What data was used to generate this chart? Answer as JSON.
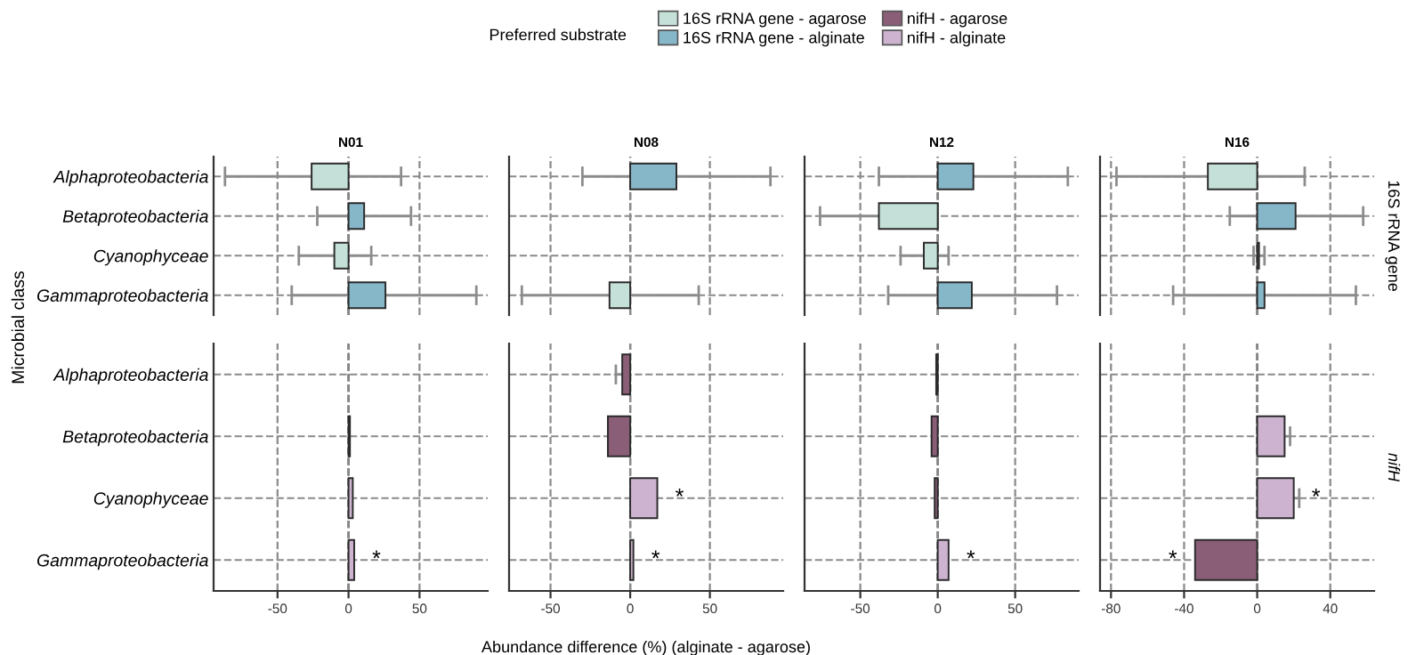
{
  "chart_data": [
    {
      "type": "bar",
      "orientation": "horizontal",
      "title": "N01",
      "ylabel": "Microbial class",
      "legend": "top",
      "legend_title": "Preferred substrate",
      "tick_labels": "y",
      "grid": true,
      "xlim": [
        -95,
        98
      ],
      "xticks": [
        -50,
        0,
        50
      ],
      "ref_lines": [
        {
          "axis": "x",
          "value": 0,
          "color": "#333333",
          "line_style": "dashed"
        }
      ],
      "categories": [
        "Alphaproteobacteria",
        "Betaproteobacteria",
        "Cyanophyceae",
        "Gammaproteobacteria"
      ],
      "series": [
        {
          "name": "16S rRNA gene - agarose",
          "color": "#c5e0d8",
          "values": [
            -26,
            null,
            -10,
            null
          ],
          "errors": [
            [
              -87,
              37
            ],
            null,
            [
              -35,
              16
            ],
            null
          ]
        },
        {
          "name": "16S rRNA gene - alginate",
          "color": "#86b7c9",
          "values": [
            null,
            11,
            null,
            26
          ],
          "errors": [
            null,
            [
              -22,
              44
            ],
            null,
            [
              -40,
              90
            ]
          ]
        }
      ]
    },
    {
      "type": "bar",
      "orientation": "horizontal",
      "title": "N08",
      "tick_labels": false,
      "grid": true,
      "xlim": [
        -76,
        96
      ],
      "xticks": [
        -50,
        0,
        50
      ],
      "ref_lines": [
        {
          "axis": "x",
          "value": 0,
          "color": "#333333",
          "line_style": "dashed"
        }
      ],
      "categories": [
        "Alphaproteobacteria",
        "Betaproteobacteria",
        "Cyanophyceae",
        "Gammaproteobacteria"
      ],
      "series": [
        {
          "color": "#c5e0d8",
          "values": [
            null,
            null,
            null,
            -13
          ],
          "errors": [
            null,
            null,
            null,
            [
              -68,
              43
            ]
          ]
        },
        {
          "color": "#86b7c9",
          "values": [
            29,
            null,
            null,
            null
          ],
          "errors": [
            [
              -30,
              88
            ],
            null,
            null,
            null
          ]
        }
      ]
    },
    {
      "type": "bar",
      "orientation": "horizontal",
      "title": "N12",
      "tick_labels": false,
      "grid": true,
      "xlim": [
        -86,
        91
      ],
      "xticks": [
        -50,
        0,
        50
      ],
      "ref_lines": [
        {
          "axis": "x",
          "value": 0,
          "color": "#333333",
          "line_style": "dashed"
        }
      ],
      "categories": [
        "Alphaproteobacteria",
        "Betaproteobacteria",
        "Cyanophyceae",
        "Gammaproteobacteria"
      ],
      "series": [
        {
          "color": "#c5e0d8",
          "values": [
            null,
            -38,
            -9,
            null
          ],
          "errors": [
            null,
            [
              -76,
              0
            ],
            [
              -24,
              7
            ],
            null
          ]
        },
        {
          "color": "#86b7c9",
          "values": [
            23,
            null,
            null,
            22
          ],
          "errors": [
            [
              -38,
              84
            ],
            null,
            null,
            [
              -32,
              77
            ]
          ]
        }
      ]
    },
    {
      "type": "bar",
      "orientation": "horizontal",
      "title": "N16",
      "tick_labels": false,
      "grid": true,
      "xlim": [
        -86,
        64
      ],
      "xticks": [
        -80,
        -40,
        0,
        40
      ],
      "ref_lines": [
        {
          "axis": "x",
          "value": 0,
          "color": "#333333",
          "line_style": "dashed"
        }
      ],
      "annotations": [
        "16S rRNA gene"
      ],
      "categories": [
        "Alphaproteobacteria",
        "Betaproteobacteria",
        "Cyanophyceae",
        "Gammaproteobacteria"
      ],
      "series": [
        {
          "color": "#c5e0d8",
          "values": [
            -27,
            null,
            null,
            null
          ],
          "errors": [
            [
              -77,
              26
            ],
            null,
            null,
            null
          ]
        },
        {
          "color": "#86b7c9",
          "values": [
            null,
            21,
            1,
            4
          ],
          "errors": [
            null,
            [
              -15,
              58
            ],
            [
              -2,
              4
            ],
            [
              -46,
              54
            ]
          ]
        }
      ]
    },
    {
      "type": "bar",
      "orientation": "horizontal",
      "legend": "top",
      "grid": true,
      "xlim": [
        -95,
        98
      ],
      "xticks": [
        -50,
        0,
        50
      ],
      "ref_lines": [
        {
          "axis": "x",
          "value": 0,
          "color": "#333333",
          "line_style": "dashed"
        }
      ],
      "annotations": [
        {
          "text": "*",
          "x": 4,
          "y": "Gammaproteobacteria"
        }
      ],
      "categories": [
        "Alphaproteobacteria",
        "Betaproteobacteria",
        "Cyanophyceae",
        "Gammaproteobacteria"
      ],
      "series": [
        {
          "name": "nifH - agarose",
          "color": "#8b5e78",
          "values": [
            null,
            null,
            null,
            null
          ]
        },
        {
          "name": "nifH - alginate",
          "color": "#cdb3cf",
          "values": [
            null,
            1,
            3,
            4
          ]
        }
      ]
    },
    {
      "type": "bar",
      "orientation": "horizontal",
      "xlabel": "Abundance difference (%) (alginate - agarose)",
      "tick_labels": "x",
      "grid": true,
      "xlim": [
        -76,
        96
      ],
      "xticks": [
        -50,
        0,
        50
      ],
      "ref_lines": [
        {
          "axis": "x",
          "value": 0,
          "color": "#333333",
          "line_style": "dashed"
        }
      ],
      "annotations": [
        {
          "text": "*",
          "x": 17,
          "y": "Cyanophyceae"
        },
        {
          "text": "*",
          "x": 2,
          "y": "Gammaproteobacteria"
        }
      ],
      "categories": [
        "Alphaproteobacteria",
        "Betaproteobacteria",
        "Cyanophyceae",
        "Gammaproteobacteria"
      ],
      "series": [
        {
          "color": "#8b5e78",
          "values": [
            -5,
            -14,
            null,
            null
          ],
          "errors": [
            [
              -9,
              -1
            ],
            null,
            null,
            null
          ]
        },
        {
          "color": "#cdb3cf",
          "values": [
            null,
            null,
            17,
            2
          ]
        }
      ]
    },
    {
      "type": "bar",
      "orientation": "horizontal",
      "tick_labels": "x",
      "grid": true,
      "xlim": [
        -86,
        91
      ],
      "xticks": [
        -50,
        0,
        50
      ],
      "ref_lines": [
        {
          "axis": "x",
          "value": 0,
          "color": "#333333",
          "line_style": "dashed"
        }
      ],
      "annotations": [
        {
          "text": "*",
          "x": 7,
          "y": "Gammaproteobacteria"
        }
      ],
      "categories": [
        "Alphaproteobacteria",
        "Betaproteobacteria",
        "Cyanophyceae",
        "Gammaproteobacteria"
      ],
      "series": [
        {
          "color": "#8b5e78",
          "values": [
            -1,
            -4,
            -2,
            null
          ]
        },
        {
          "color": "#cdb3cf",
          "values": [
            null,
            null,
            null,
            7
          ]
        }
      ]
    },
    {
      "type": "bar",
      "orientation": "horizontal",
      "tick_labels": "x",
      "grid": true,
      "xlim": [
        -86,
        64
      ],
      "xticks": [
        -80,
        -40,
        0,
        40
      ],
      "ref_lines": [
        {
          "axis": "x",
          "value": 0,
          "color": "#333333",
          "line_style": "dashed"
        }
      ],
      "annotations": [
        "nifH",
        {
          "text": "*",
          "x": 20,
          "y": "Cyanophyceae"
        },
        {
          "text": "*",
          "x": -34,
          "y": "Gammaproteobacteria"
        }
      ],
      "categories": [
        "Alphaproteobacteria",
        "Betaproteobacteria",
        "Cyanophyceae",
        "Gammaproteobacteria"
      ],
      "series": [
        {
          "color": "#8b5e78",
          "values": [
            null,
            null,
            null,
            -34
          ]
        },
        {
          "color": "#cdb3cf",
          "values": [
            null,
            15,
            20,
            null
          ],
          "errors": [
            null,
            [
              12,
              18
            ],
            [
              17,
              23
            ],
            null
          ]
        }
      ]
    }
  ]
}
